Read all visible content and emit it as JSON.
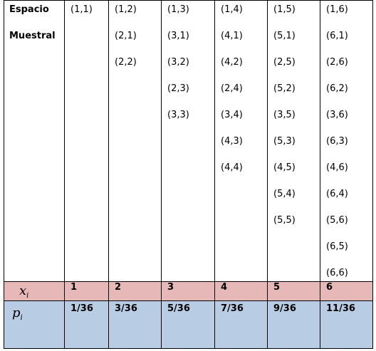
{
  "header": {
    "line1": "Espacio",
    "line2": "Muestral"
  },
  "columns": [
    {
      "pairs": [
        "(1,1)"
      ],
      "x": "1",
      "p": "1/36"
    },
    {
      "pairs": [
        "(1,2)",
        "(2,1)",
        "(2,2)"
      ],
      "x": "2",
      "p": "3/36"
    },
    {
      "pairs": [
        "(1,3)",
        "(3,1)",
        "(3,2)",
        "(2,3)",
        "(3,3)"
      ],
      "x": "3",
      "p": "5/36"
    },
    {
      "pairs": [
        "(1,4)",
        "(4,1)",
        "(4,2)",
        "(2,4)",
        "(3,4)",
        "(4,3)",
        "(4,4)"
      ],
      "x": "4",
      "p": "7/36"
    },
    {
      "pairs": [
        "(1,5)",
        "(5,1)",
        "(2,5)",
        "(5,2)",
        "(3,5)",
        "(5,3)",
        "(4,5)",
        "(5,4)",
        "(5,5)"
      ],
      "x": "5",
      "p": "9/36"
    },
    {
      "pairs": [
        "(1,6)",
        "(6,1)",
        "(2,6)",
        "(6,2)",
        "(3,6)",
        "(6,3)",
        "(4,6)",
        "(6,4)",
        "(5,6)",
        "(6,5)",
        "(6,6)"
      ],
      "x": "6",
      "p": "11/36"
    }
  ],
  "row_labels": {
    "x_symbol": "x",
    "x_subscript": "i",
    "p_symbol": "p",
    "p_subscript": "i"
  },
  "colors": {
    "x_row": "#e6b8b7",
    "p_row": "#b8cce4",
    "border": "#000000"
  }
}
